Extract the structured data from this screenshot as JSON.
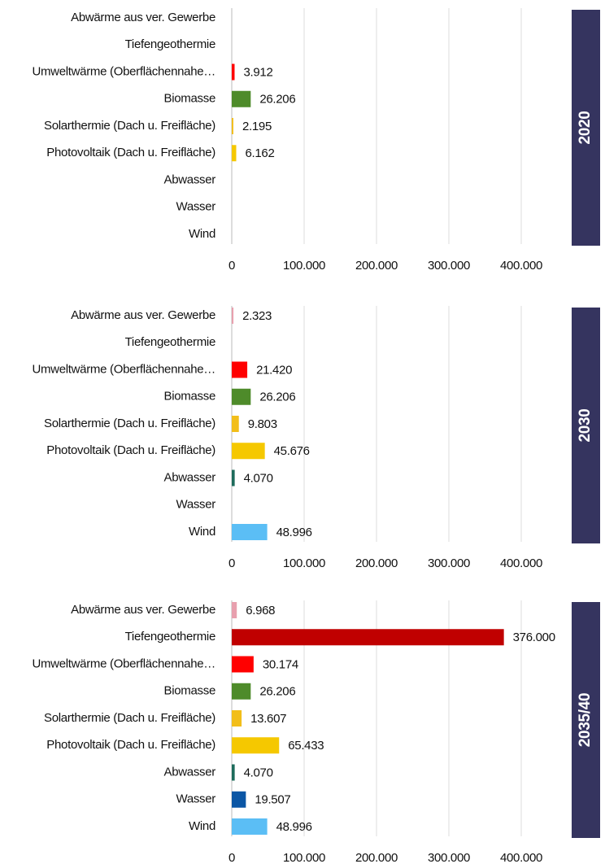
{
  "chart_data": [
    {
      "type": "barh",
      "title": "2020",
      "categories": [
        "Abwärme aus ver. Gewerbe",
        "Tiefengeothermie",
        "Umweltwärme (Oberflächennahe…",
        "Biomasse",
        "Solarthermie (Dach u. Freifläche)",
        "Photovoltaik (Dach u. Freifläche)",
        "Abwasser",
        "Wasser",
        "Wind"
      ],
      "values": [
        null,
        null,
        3912,
        26206,
        2195,
        6162,
        null,
        null,
        null
      ],
      "value_labels": [
        null,
        null,
        "3.912",
        "26.206",
        "2.195",
        "6.162",
        null,
        null,
        null
      ],
      "colors": [
        "#e8a0ae",
        "#c00000",
        "#ff0000",
        "#4e8b2a",
        "#f2be1a",
        "#f5c800",
        "#1d6b5b",
        "#0b56a5",
        "#5bbef5"
      ],
      "xlim": [
        0,
        400000
      ],
      "xticks": [
        0,
        {
          "value": 100000,
          "label": "100.000"
        },
        {
          "value": 200000,
          "label": "200.000"
        },
        {
          "value": 300000,
          "label": "300.000"
        },
        {
          "value": 400000,
          "label": "400.000"
        }
      ],
      "grid": true
    },
    {
      "type": "barh",
      "title": "2030",
      "categories": [
        "Abwärme aus ver. Gewerbe",
        "Tiefengeothermie",
        "Umweltwärme (Oberflächennahe…",
        "Biomasse",
        "Solarthermie (Dach u. Freifläche)",
        "Photovoltaik (Dach u. Freifläche)",
        "Abwasser",
        "Wasser",
        "Wind"
      ],
      "values": [
        2323,
        null,
        21420,
        26206,
        9803,
        45676,
        4070,
        null,
        48996
      ],
      "value_labels": [
        "2.323",
        null,
        "21.420",
        "26.206",
        "9.803",
        "45.676",
        "4.070",
        null,
        "48.996"
      ],
      "colors": [
        "#e8a0ae",
        "#c00000",
        "#ff0000",
        "#4e8b2a",
        "#f2be1a",
        "#f5c800",
        "#1d6b5b",
        "#0b56a5",
        "#5bbef5"
      ],
      "xlim": [
        0,
        400000
      ],
      "xticks": [
        0,
        {
          "value": 100000,
          "label": "100.000"
        },
        {
          "value": 200000,
          "label": "200.000"
        },
        {
          "value": 300000,
          "label": "300.000"
        },
        {
          "value": 400000,
          "label": "400.000"
        }
      ],
      "grid": true
    },
    {
      "type": "barh",
      "title": "2035/40",
      "categories": [
        "Abwärme aus ver. Gewerbe",
        "Tiefengeothermie",
        "Umweltwärme (Oberflächennahe…",
        "Biomasse",
        "Solarthermie (Dach u. Freifläche)",
        "Photovoltaik (Dach u. Freifläche)",
        "Abwasser",
        "Wasser",
        "Wind"
      ],
      "values": [
        6968,
        376000,
        30174,
        26206,
        13607,
        65433,
        4070,
        19507,
        48996
      ],
      "value_labels": [
        "6.968",
        "376.000",
        "30.174",
        "26.206",
        "13.607",
        "65.433",
        "4.070",
        "19.507",
        "48.996"
      ],
      "colors": [
        "#e8a0ae",
        "#c00000",
        "#ff0000",
        "#4e8b2a",
        "#f2be1a",
        "#f5c800",
        "#1d6b5b",
        "#0b56a5",
        "#5bbef5"
      ],
      "xlim": [
        0,
        400000
      ],
      "xticks": [
        0,
        {
          "value": 100000,
          "label": "100.000"
        },
        {
          "value": 200000,
          "label": "200.000"
        },
        {
          "value": 300000,
          "label": "300.000"
        },
        {
          "value": 400000,
          "label": "400.000"
        }
      ],
      "grid": true
    }
  ]
}
